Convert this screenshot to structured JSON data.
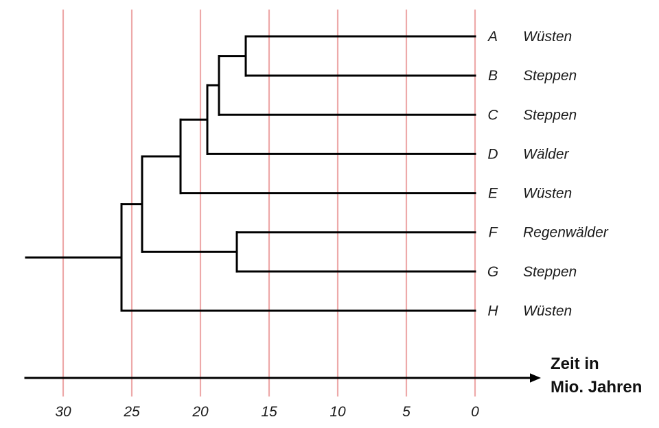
{
  "axis": {
    "label_line1": "Zeit in",
    "label_line2": "Mio. Jahren",
    "ticks": [
      30,
      25,
      20,
      15,
      10,
      5,
      0
    ],
    "tick_unit": "Mio. Jahren"
  },
  "leaves": [
    {
      "id": "A",
      "habitat": "Wüsten"
    },
    {
      "id": "B",
      "habitat": "Steppen"
    },
    {
      "id": "C",
      "habitat": "Steppen"
    },
    {
      "id": "D",
      "habitat": "Wälder"
    },
    {
      "id": "E",
      "habitat": "Wüsten"
    },
    {
      "id": "F",
      "habitat": "Regenwälder"
    },
    {
      "id": "G",
      "habitat": "Steppen"
    },
    {
      "id": "H",
      "habitat": "Wüsten"
    }
  ],
  "tree": {
    "type": "dendrogram",
    "leaf_time": 0,
    "root_stem_start_time": 32.7,
    "topology": {
      "split_time": 25.75,
      "children": [
        {
          "split_time": 24.25,
          "children": [
            {
              "split_time": 21.45,
              "children": [
                {
                  "split_time": 19.5,
                  "children": [
                    {
                      "split_time": 18.65,
                      "children": [
                        {
                          "split_time": 16.7,
                          "children": [
                            {
                              "leaf": "A"
                            },
                            {
                              "leaf": "B"
                            }
                          ]
                        },
                        {
                          "leaf": "C"
                        }
                      ]
                    },
                    {
                      "leaf": "D"
                    }
                  ]
                },
                {
                  "leaf": "E"
                }
              ]
            },
            {
              "split_time": 17.35,
              "children": [
                {
                  "leaf": "F"
                },
                {
                  "leaf": "G"
                }
              ]
            }
          ]
        },
        {
          "leaf": "H"
        }
      ]
    }
  },
  "colors": {
    "branch": "#000000",
    "gridline": "#eda9a9",
    "gridline_light": "#f8d6d6",
    "text": "#1a1a1a",
    "axis": "#000000"
  }
}
